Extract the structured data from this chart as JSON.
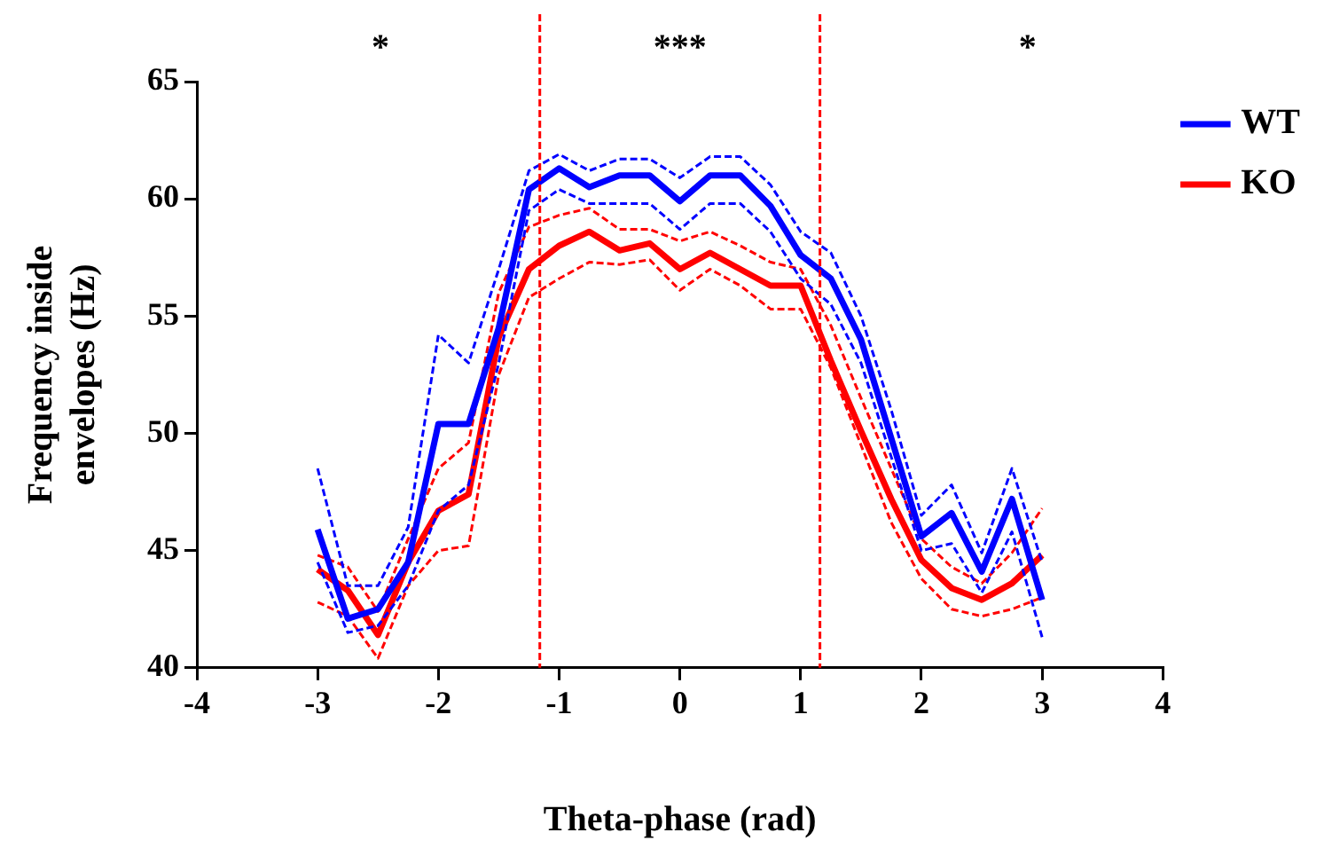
{
  "chart_data": {
    "type": "line",
    "xlabel": "Theta-phase (rad)",
    "ylabel": "Frequency inside envelopes (Hz)",
    "x": [
      -3,
      -2.75,
      -2.5,
      -2.25,
      -2,
      -1.75,
      -1.5,
      -1.25,
      -1,
      -0.75,
      -0.5,
      -0.25,
      0,
      0.25,
      0.5,
      0.75,
      1,
      1.25,
      1.5,
      1.75,
      2,
      2.25,
      2.5,
      2.75,
      3
    ],
    "series": [
      {
        "name": "WT",
        "color": "#0000ff",
        "values": [
          45.9,
          42.1,
          42.5,
          44.5,
          50.4,
          50.4,
          54.5,
          60.4,
          61.3,
          60.5,
          61.0,
          61.0,
          59.9,
          61.0,
          61.0,
          59.7,
          57.6,
          56.6,
          54.0,
          49.8,
          45.6,
          46.6,
          44.1,
          47.2,
          42.9
        ]
      },
      {
        "color": "#0000ff",
        "line_style": "dashed",
        "values": [
          48.5,
          43.5,
          43.5,
          46.0,
          54.2,
          53.0,
          57.0,
          61.2,
          61.9,
          61.2,
          61.7,
          61.7,
          60.9,
          61.8,
          61.8,
          60.6,
          58.6,
          57.7,
          55.0,
          51.0,
          46.5,
          47.8,
          44.9,
          48.5,
          44.5
        ]
      },
      {
        "color": "#0000ff",
        "line_style": "dashed",
        "values": [
          44.5,
          41.5,
          41.8,
          43.5,
          46.7,
          47.8,
          53.0,
          59.5,
          60.4,
          59.8,
          59.8,
          59.8,
          58.7,
          59.8,
          59.8,
          58.6,
          56.6,
          55.5,
          53.0,
          49.0,
          45.0,
          45.3,
          43.2,
          45.8,
          41.3
        ]
      },
      {
        "name": "KO",
        "color": "#ff0000",
        "values": [
          44.2,
          43.3,
          41.4,
          44.5,
          46.7,
          47.4,
          54.1,
          57.0,
          58.0,
          58.6,
          57.8,
          58.1,
          57.0,
          57.7,
          57.0,
          56.3,
          56.3,
          53.1,
          50.1,
          47.2,
          44.6,
          43.4,
          42.9,
          43.6,
          44.8
        ]
      },
      {
        "color": "#ff0000",
        "line_style": "dashed",
        "values": [
          44.8,
          44.3,
          42.4,
          45.5,
          48.5,
          49.6,
          56.0,
          58.8,
          59.3,
          59.6,
          58.7,
          58.7,
          58.2,
          58.6,
          58.0,
          57.3,
          57.0,
          54.6,
          51.5,
          48.5,
          45.5,
          44.3,
          43.6,
          44.9,
          46.8
        ]
      },
      {
        "color": "#ff0000",
        "line_style": "dashed",
        "values": [
          42.8,
          42.2,
          40.4,
          43.5,
          45.0,
          45.2,
          52.5,
          55.8,
          56.6,
          57.3,
          57.2,
          57.4,
          56.1,
          57.0,
          56.3,
          55.3,
          55.3,
          52.8,
          49.5,
          46.2,
          43.8,
          42.5,
          42.2,
          42.5,
          43.0
        ]
      }
    ],
    "xlim": [
      -4,
      4
    ],
    "xticks": [
      -4,
      -3,
      -2,
      -1,
      0,
      1,
      2,
      3,
      4
    ],
    "ylim": [
      40,
      65
    ],
    "yticks": [
      40,
      45,
      50,
      55,
      60,
      65
    ],
    "ref_lines": [
      {
        "axis": "x",
        "value": -1.16,
        "color": "#ff0000",
        "line_style": "dashed"
      },
      {
        "axis": "x",
        "value": 1.16,
        "color": "#ff0000",
        "line_style": "dashed"
      }
    ],
    "annotations": [
      "*",
      "***",
      "*"
    ],
    "grid": false,
    "legend": "top right",
    "marker": "none",
    "line_style": "solid"
  }
}
